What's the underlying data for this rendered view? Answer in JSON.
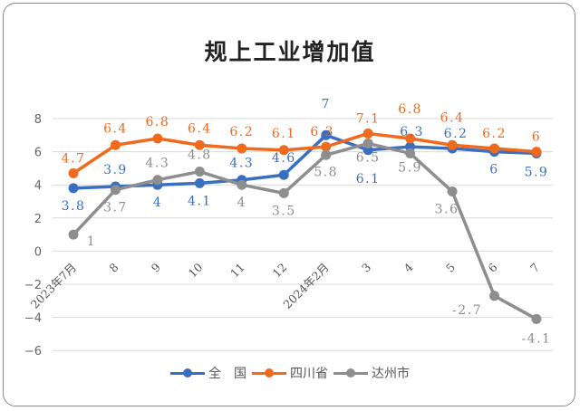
{
  "chart_data": {
    "type": "line",
    "title": "规上工业增加值",
    "categories": [
      "2023年7月",
      "8",
      "9",
      "10",
      "11",
      "12",
      "2024年2月",
      "3",
      "4",
      "5",
      "6",
      "7"
    ],
    "ylim": [
      -6,
      8
    ],
    "yticks": [
      -6,
      -4,
      -2,
      0,
      2,
      4,
      6,
      8
    ],
    "grid": true,
    "legend_position": "bottom",
    "series": [
      {
        "name": "全　国",
        "color": "#3a6fc0",
        "values": [
          3.8,
          3.9,
          4,
          4.1,
          4.3,
          4.6,
          7,
          6.1,
          6.3,
          6.2,
          6,
          5.9
        ],
        "labels": [
          "3.8",
          "3.9",
          "4",
          "4.1",
          "4.3",
          "4.6",
          "7",
          "6.1",
          "6.3",
          "6.2",
          "6",
          "5.9"
        ]
      },
      {
        "name": "四川省",
        "color": "#f06a1e",
        "values": [
          4.7,
          6.4,
          6.8,
          6.4,
          6.2,
          6.1,
          6.3,
          7.1,
          6.8,
          6.4,
          6.2,
          6
        ],
        "labels": [
          "4.7",
          "6.4",
          "6.8",
          "6.4",
          "6.2",
          "6.1",
          "6.3",
          "7.1",
          "6.8",
          "6.4",
          "6.2",
          "6"
        ]
      },
      {
        "name": "达州市",
        "color": "#8e8e8e",
        "values": [
          1,
          3.7,
          4.3,
          4.8,
          4,
          3.5,
          5.8,
          6.5,
          5.9,
          3.6,
          -2.7,
          -4.1
        ],
        "labels": [
          "1",
          "3.7",
          "4.3",
          "4.8",
          "4",
          "3.5",
          "5.8",
          "6.5",
          "5.9",
          "3.6",
          "-2.7",
          "-4.1"
        ]
      }
    ]
  }
}
